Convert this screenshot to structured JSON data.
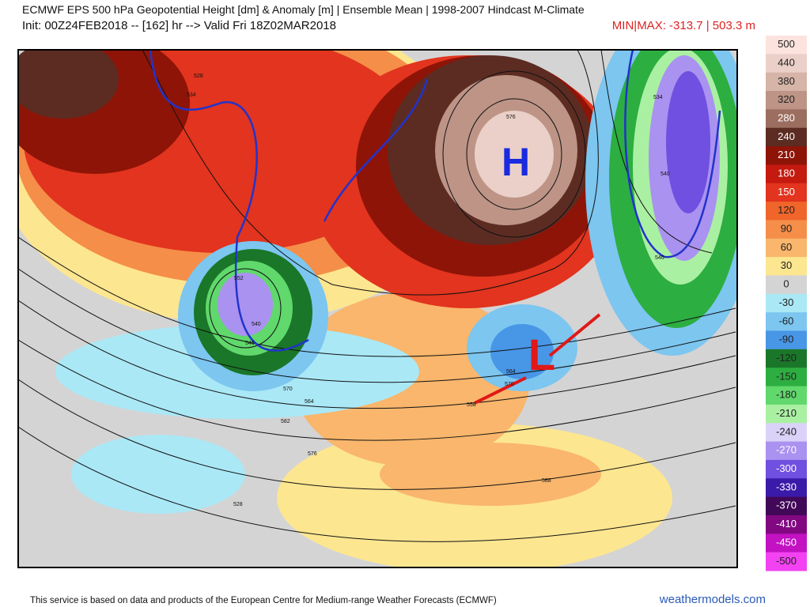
{
  "header": {
    "title": "ECMWF EPS 500 hPa Geopotential Height [dm] & Anomaly [m] | Ensemble Mean | 1998-2007 Hindcast M-Climate",
    "init": "Init: 00Z24FEB2018 -- [162] hr --> Valid Fri 18Z02MAR2018",
    "minmax": "MIN|MAX: -313.7 | 503.3 m"
  },
  "colorbar": {
    "levels": [
      {
        "label": "500",
        "color": "#fde3de"
      },
      {
        "label": "440",
        "color": "#ead0c8"
      },
      {
        "label": "380",
        "color": "#d6b4a8"
      },
      {
        "label": "320",
        "color": "#bd9486"
      },
      {
        "label": "280",
        "color": "#9c6e60"
      },
      {
        "label": "240",
        "color": "#5c2c22"
      },
      {
        "label": "210",
        "color": "#8e1408"
      },
      {
        "label": "180",
        "color": "#c41a10"
      },
      {
        "label": "150",
        "color": "#e2341e"
      },
      {
        "label": "120",
        "color": "#f0652a"
      },
      {
        "label": "90",
        "color": "#f58e48"
      },
      {
        "label": "60",
        "color": "#f9b66c"
      },
      {
        "label": "30",
        "color": "#fde690"
      },
      {
        "label": "0",
        "color": "#d4d4d4"
      },
      {
        "label": "-30",
        "color": "#aae8f6"
      },
      {
        "label": "-60",
        "color": "#7cc6f0"
      },
      {
        "label": "-90",
        "color": "#4896e6"
      },
      {
        "label": "-120",
        "color": "#1a7628"
      },
      {
        "label": "-150",
        "color": "#2cae40"
      },
      {
        "label": "-180",
        "color": "#60d86c"
      },
      {
        "label": "-210",
        "color": "#aaf0a2"
      },
      {
        "label": "-240",
        "color": "#dad2f8"
      },
      {
        "label": "-270",
        "color": "#aa92f0"
      },
      {
        "label": "-300",
        "color": "#7050e0"
      },
      {
        "label": "-330",
        "color": "#3a1aa8"
      },
      {
        "label": "-370",
        "color": "#420858"
      },
      {
        "label": "-410",
        "color": "#820882"
      },
      {
        "label": "-450",
        "color": "#c212c2"
      },
      {
        "label": "-500",
        "color": "#f242f2"
      }
    ]
  },
  "map": {
    "high": "H",
    "low": "L",
    "contour_labels": [
      "528",
      "534",
      "540",
      "546",
      "552",
      "558",
      "564",
      "570",
      "576",
      "582",
      "588",
      "528",
      "534",
      "540",
      "546",
      "564",
      "570",
      "576"
    ]
  },
  "footer": {
    "credit": "This service is based on data and products of the European Centre for Medium-range Weather Forecasts (ECMWF)",
    "site": "weathermodels.com"
  }
}
